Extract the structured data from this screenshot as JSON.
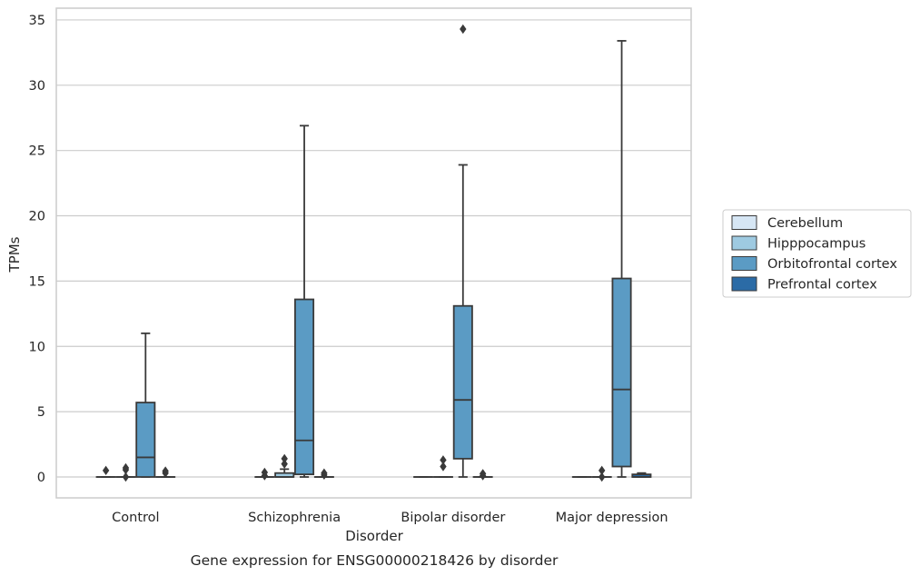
{
  "chart_data": {
    "type": "box",
    "title": "Gene expression for ENSG00000218426 by disorder",
    "xlabel": "Disorder",
    "ylabel": "TPMs",
    "ylim": [
      -1.6,
      35.9
    ],
    "yticks": [
      0,
      5,
      10,
      15,
      20,
      25,
      30,
      35
    ],
    "grid": "y",
    "legend_position": "right",
    "categories": [
      "Control",
      "Schizophrenia",
      "Bipolar disorder",
      "Major depression"
    ],
    "series": [
      {
        "name": "Cerebellum",
        "color": "#d6e6f4",
        "boxes": [
          {
            "whislo": 0,
            "q1": 0,
            "med": 0,
            "q3": 0,
            "whishi": 0,
            "fliers": [
              0.5
            ]
          },
          {
            "whislo": 0,
            "q1": 0,
            "med": 0,
            "q3": 0,
            "whishi": 0,
            "fliers": [
              0.1,
              0.35
            ]
          },
          {
            "whislo": 0,
            "q1": 0,
            "med": 0,
            "q3": 0,
            "whishi": 0,
            "fliers": []
          },
          {
            "whislo": 0,
            "q1": 0,
            "med": 0,
            "q3": 0,
            "whishi": 0,
            "fliers": []
          }
        ]
      },
      {
        "name": "Hipppocampus",
        "color": "#9ecae1",
        "boxes": [
          {
            "whislo": 0,
            "q1": 0,
            "med": 0,
            "q3": 0,
            "whishi": 0,
            "fliers": [
              0,
              0.55,
              0.7
            ]
          },
          {
            "whislo": 0,
            "q1": 0,
            "med": 0,
            "q3": 0.3,
            "whishi": 0.6,
            "fliers": [
              1.0,
              1.4
            ]
          },
          {
            "whislo": 0,
            "q1": 0,
            "med": 0,
            "q3": 0,
            "whishi": 0,
            "fliers": [
              0.8,
              1.3
            ]
          },
          {
            "whislo": 0,
            "q1": 0,
            "med": 0,
            "q3": 0,
            "whishi": 0,
            "fliers": [
              0,
              0.5
            ]
          }
        ]
      },
      {
        "name": "Orbitofrontal cortex",
        "color": "#5b9bc4",
        "boxes": [
          {
            "whislo": 0,
            "q1": 0,
            "med": 1.5,
            "q3": 5.7,
            "whishi": 11.0,
            "fliers": []
          },
          {
            "whislo": 0,
            "q1": 0.2,
            "med": 2.8,
            "q3": 13.6,
            "whishi": 26.9,
            "fliers": []
          },
          {
            "whislo": 0,
            "q1": 1.4,
            "med": 5.9,
            "q3": 13.1,
            "whishi": 23.9,
            "fliers": [
              34.3
            ]
          },
          {
            "whislo": 0,
            "q1": 0.8,
            "med": 6.7,
            "q3": 15.2,
            "whishi": 33.4,
            "fliers": []
          }
        ]
      },
      {
        "name": "Prefrontal cortex",
        "color": "#2b6ba6",
        "boxes": [
          {
            "whislo": 0,
            "q1": 0,
            "med": 0,
            "q3": 0,
            "whishi": 0,
            "fliers": [
              0.3,
              0.45
            ]
          },
          {
            "whislo": 0,
            "q1": 0,
            "med": 0,
            "q3": 0,
            "whishi": 0,
            "fliers": [
              0.15,
              0.3
            ]
          },
          {
            "whislo": 0,
            "q1": 0,
            "med": 0,
            "q3": 0,
            "whishi": 0,
            "fliers": [
              0.1,
              0.25
            ]
          },
          {
            "whislo": 0,
            "q1": 0,
            "med": 0,
            "q3": 0.2,
            "whishi": 0.3,
            "fliers": []
          }
        ]
      }
    ]
  }
}
